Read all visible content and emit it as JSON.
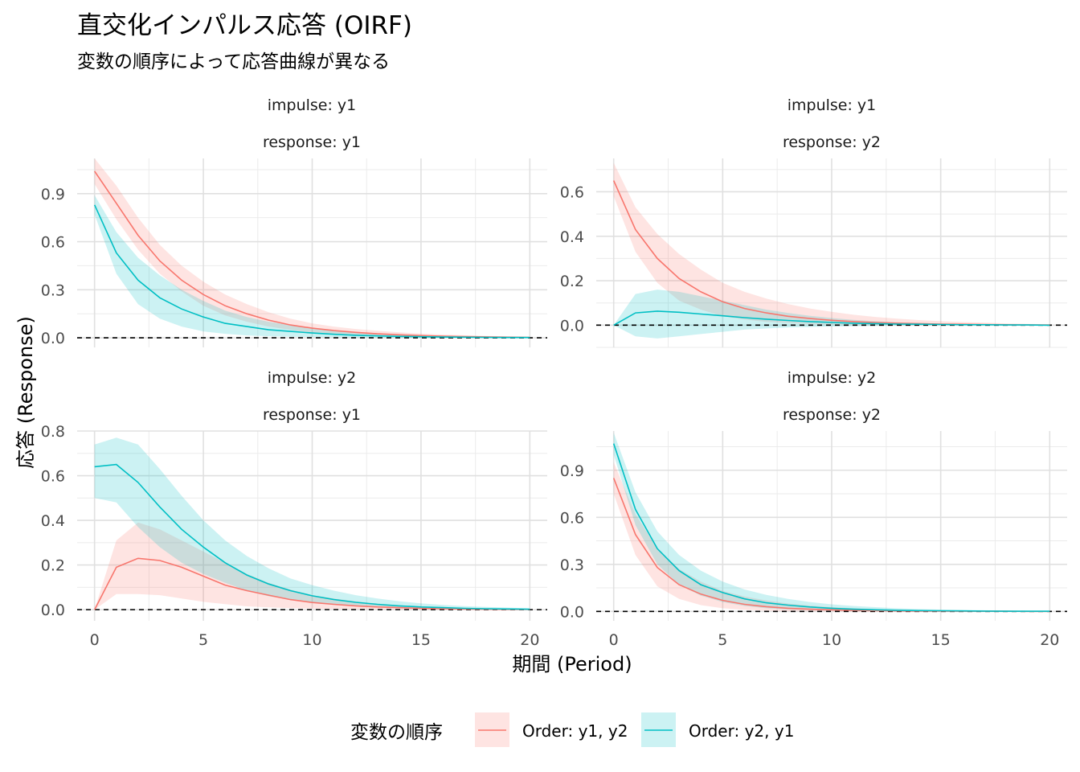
{
  "title": "直交化インパルス応答 (OIRF)",
  "subtitle": "変数の順序によって応答曲線が異なる",
  "xlabel": "期間 (Period)",
  "ylabel": "応答 (Response)",
  "legend": {
    "title": "変数の順序",
    "items": [
      {
        "label": "Order: y1, y2",
        "line": "#F8766D",
        "fill": "#F8766D"
      },
      {
        "label": "Order: y2, y1",
        "line": "#00BFC4",
        "fill": "#00BFC4"
      }
    ]
  },
  "chart_data": [
    {
      "type": "line",
      "impulse_label": "impulse: y1",
      "response_label": "response: y1",
      "x": [
        0,
        1,
        2,
        3,
        4,
        5,
        6,
        7,
        8,
        9,
        10,
        11,
        12,
        13,
        14,
        15,
        16,
        17,
        18,
        19,
        20
      ],
      "xlim": [
        -0.8,
        20.8
      ],
      "xticks": [
        0,
        5,
        10,
        15,
        20
      ],
      "ylim": [
        -0.06,
        1.12
      ],
      "yticks": [
        0.0,
        0.3,
        0.6,
        0.9
      ],
      "ytick_labels": [
        "0.0",
        "0.3",
        "0.6",
        "0.9"
      ],
      "hline": 0,
      "series": [
        {
          "name": "Order: y1, y2",
          "values": [
            1.04,
            0.84,
            0.64,
            0.48,
            0.36,
            0.27,
            0.2,
            0.15,
            0.11,
            0.08,
            0.06,
            0.045,
            0.034,
            0.025,
            0.019,
            0.014,
            0.01,
            0.008,
            0.006,
            0.004,
            0.003
          ],
          "lower": [
            0.96,
            0.74,
            0.55,
            0.4,
            0.29,
            0.2,
            0.14,
            0.1,
            0.07,
            0.05,
            0.03,
            0.02,
            0.014,
            0.01,
            0.007,
            0.005,
            0.003,
            0.002,
            0.001,
            0.001,
            0.0
          ],
          "upper": [
            1.12,
            0.95,
            0.75,
            0.58,
            0.45,
            0.35,
            0.27,
            0.21,
            0.16,
            0.12,
            0.09,
            0.07,
            0.055,
            0.044,
            0.034,
            0.026,
            0.02,
            0.016,
            0.012,
            0.009,
            0.007
          ]
        },
        {
          "name": "Order: y2, y1",
          "values": [
            0.83,
            0.53,
            0.36,
            0.25,
            0.18,
            0.13,
            0.09,
            0.07,
            0.05,
            0.04,
            0.03,
            0.022,
            0.016,
            0.012,
            0.009,
            0.007,
            0.005,
            0.004,
            0.003,
            0.002,
            0.002
          ],
          "lower": [
            0.77,
            0.4,
            0.21,
            0.12,
            0.07,
            0.04,
            0.025,
            0.015,
            0.01,
            0.007,
            0.005,
            0.003,
            0.002,
            0.001,
            0.001,
            0.0,
            0.0,
            0.0,
            0.0,
            0.0,
            0.0
          ],
          "upper": [
            0.89,
            0.66,
            0.5,
            0.39,
            0.3,
            0.23,
            0.17,
            0.13,
            0.1,
            0.08,
            0.06,
            0.045,
            0.034,
            0.026,
            0.02,
            0.015,
            0.011,
            0.008,
            0.006,
            0.005,
            0.004
          ]
        }
      ]
    },
    {
      "type": "line",
      "impulse_label": "impulse: y1",
      "response_label": "response: y2",
      "x": [
        0,
        1,
        2,
        3,
        4,
        5,
        6,
        7,
        8,
        9,
        10,
        11,
        12,
        13,
        14,
        15,
        16,
        17,
        18,
        19,
        20
      ],
      "xlim": [
        -0.8,
        20.8
      ],
      "xticks": [
        0,
        5,
        10,
        15,
        20
      ],
      "ylim": [
        -0.1,
        0.75
      ],
      "yticks": [
        0.0,
        0.2,
        0.4,
        0.6
      ],
      "ytick_labels": [
        "0.0",
        "0.2",
        "0.4",
        "0.6"
      ],
      "hline": 0,
      "series": [
        {
          "name": "Order: y1, y2",
          "values": [
            0.65,
            0.43,
            0.3,
            0.21,
            0.15,
            0.105,
            0.075,
            0.055,
            0.04,
            0.03,
            0.022,
            0.016,
            0.012,
            0.009,
            0.007,
            0.005,
            0.004,
            0.003,
            0.002,
            0.001,
            0.001
          ],
          "lower": [
            0.58,
            0.33,
            0.19,
            0.11,
            0.07,
            0.04,
            0.025,
            0.015,
            0.01,
            0.005,
            0.003,
            0.002,
            0.001,
            0.0,
            0.0,
            0.0,
            0.0,
            0.0,
            0.0,
            0.0,
            0.0
          ],
          "upper": [
            0.73,
            0.53,
            0.41,
            0.32,
            0.25,
            0.19,
            0.15,
            0.12,
            0.095,
            0.075,
            0.06,
            0.047,
            0.037,
            0.029,
            0.023,
            0.018,
            0.014,
            0.011,
            0.008,
            0.006,
            0.004
          ]
        },
        {
          "name": "Order: y2, y1",
          "values": [
            0.0,
            0.055,
            0.063,
            0.058,
            0.05,
            0.042,
            0.034,
            0.027,
            0.021,
            0.016,
            0.012,
            0.009,
            0.007,
            0.005,
            0.004,
            0.003,
            0.002,
            0.002,
            0.001,
            0.001,
            0.0
          ],
          "lower": [
            0.0,
            -0.05,
            -0.06,
            -0.05,
            -0.04,
            -0.03,
            -0.02,
            -0.015,
            -0.01,
            -0.008,
            -0.006,
            -0.004,
            -0.003,
            -0.002,
            -0.001,
            -0.001,
            0.0,
            0.0,
            0.0,
            0.0,
            0.0
          ],
          "upper": [
            0.0,
            0.14,
            0.16,
            0.15,
            0.13,
            0.11,
            0.09,
            0.07,
            0.055,
            0.042,
            0.032,
            0.024,
            0.018,
            0.013,
            0.01,
            0.007,
            0.005,
            0.004,
            0.003,
            0.002,
            0.001
          ]
        }
      ]
    },
    {
      "type": "line",
      "impulse_label": "impulse: y2",
      "response_label": "response: y1",
      "x": [
        0,
        1,
        2,
        3,
        4,
        5,
        6,
        7,
        8,
        9,
        10,
        11,
        12,
        13,
        14,
        15,
        16,
        17,
        18,
        19,
        20
      ],
      "xlim": [
        -0.8,
        20.8
      ],
      "xticks": [
        0,
        5,
        10,
        15,
        20
      ],
      "ylim": [
        -0.05,
        0.8
      ],
      "yticks": [
        0.0,
        0.2,
        0.4,
        0.6,
        0.8
      ],
      "ytick_labels": [
        "0.0",
        "0.2",
        "0.4",
        "0.6",
        "0.8"
      ],
      "hline": 0,
      "series": [
        {
          "name": "Order: y1, y2",
          "values": [
            0.0,
            0.19,
            0.23,
            0.22,
            0.19,
            0.15,
            0.11,
            0.085,
            0.065,
            0.045,
            0.032,
            0.024,
            0.017,
            0.012,
            0.009,
            0.006,
            0.004,
            0.003,
            0.002,
            0.001,
            0.001
          ],
          "lower": [
            0.0,
            0.07,
            0.07,
            0.065,
            0.05,
            0.035,
            0.025,
            0.015,
            0.01,
            0.007,
            0.005,
            0.003,
            0.002,
            0.001,
            0.0,
            0.0,
            0.0,
            0.0,
            0.0,
            0.0,
            0.0
          ],
          "upper": [
            0.0,
            0.31,
            0.39,
            0.36,
            0.31,
            0.26,
            0.21,
            0.16,
            0.12,
            0.09,
            0.065,
            0.05,
            0.037,
            0.027,
            0.02,
            0.014,
            0.01,
            0.007,
            0.005,
            0.003,
            0.002
          ]
        },
        {
          "name": "Order: y2, y1",
          "values": [
            0.64,
            0.65,
            0.57,
            0.46,
            0.36,
            0.28,
            0.21,
            0.155,
            0.115,
            0.085,
            0.062,
            0.045,
            0.033,
            0.024,
            0.017,
            0.012,
            0.009,
            0.006,
            0.004,
            0.003,
            0.002
          ],
          "lower": [
            0.5,
            0.48,
            0.37,
            0.28,
            0.21,
            0.16,
            0.12,
            0.085,
            0.06,
            0.045,
            0.032,
            0.023,
            0.016,
            0.011,
            0.008,
            0.005,
            0.003,
            0.002,
            0.001,
            0.0,
            0.0
          ],
          "upper": [
            0.74,
            0.77,
            0.74,
            0.63,
            0.51,
            0.4,
            0.31,
            0.24,
            0.185,
            0.14,
            0.11,
            0.085,
            0.065,
            0.05,
            0.038,
            0.028,
            0.021,
            0.016,
            0.012,
            0.009,
            0.006
          ]
        }
      ]
    },
    {
      "type": "line",
      "impulse_label": "impulse: y2",
      "response_label": "response: y2",
      "x": [
        0,
        1,
        2,
        3,
        4,
        5,
        6,
        7,
        8,
        9,
        10,
        11,
        12,
        13,
        14,
        15,
        16,
        17,
        18,
        19,
        20
      ],
      "xlim": [
        -0.8,
        20.8
      ],
      "xticks": [
        0,
        5,
        10,
        15,
        20
      ],
      "ylim": [
        -0.06,
        1.15
      ],
      "yticks": [
        0.0,
        0.3,
        0.6,
        0.9
      ],
      "ytick_labels": [
        "0.0",
        "0.3",
        "0.6",
        "0.9"
      ],
      "hline": 0,
      "series": [
        {
          "name": "Order: y1, y2",
          "values": [
            0.85,
            0.49,
            0.28,
            0.17,
            0.11,
            0.07,
            0.045,
            0.03,
            0.02,
            0.014,
            0.01,
            0.007,
            0.005,
            0.003,
            0.002,
            0.002,
            0.001,
            0.001,
            0.001,
            0.0,
            0.0
          ],
          "lower": [
            0.75,
            0.36,
            0.16,
            0.08,
            0.04,
            0.02,
            0.01,
            0.005,
            0.002,
            0.001,
            0.0,
            0.0,
            0.0,
            0.0,
            0.0,
            0.0,
            0.0,
            0.0,
            0.0,
            0.0,
            0.0
          ],
          "upper": [
            0.95,
            0.62,
            0.4,
            0.27,
            0.19,
            0.13,
            0.095,
            0.07,
            0.05,
            0.037,
            0.027,
            0.02,
            0.015,
            0.011,
            0.008,
            0.006,
            0.004,
            0.003,
            0.002,
            0.002,
            0.001
          ]
        },
        {
          "name": "Order: y2, y1",
          "values": [
            1.07,
            0.65,
            0.4,
            0.26,
            0.17,
            0.12,
            0.08,
            0.055,
            0.04,
            0.028,
            0.02,
            0.014,
            0.01,
            0.007,
            0.005,
            0.004,
            0.003,
            0.002,
            0.001,
            0.001,
            0.001
          ],
          "lower": [
            1.0,
            0.55,
            0.3,
            0.17,
            0.1,
            0.06,
            0.035,
            0.02,
            0.012,
            0.007,
            0.004,
            0.002,
            0.001,
            0.0,
            0.0,
            0.0,
            0.0,
            0.0,
            0.0,
            0.0,
            0.0
          ],
          "upper": [
            1.14,
            0.76,
            0.51,
            0.36,
            0.26,
            0.19,
            0.14,
            0.105,
            0.08,
            0.06,
            0.045,
            0.035,
            0.027,
            0.02,
            0.015,
            0.012,
            0.009,
            0.007,
            0.005,
            0.004,
            0.003
          ]
        }
      ]
    }
  ]
}
